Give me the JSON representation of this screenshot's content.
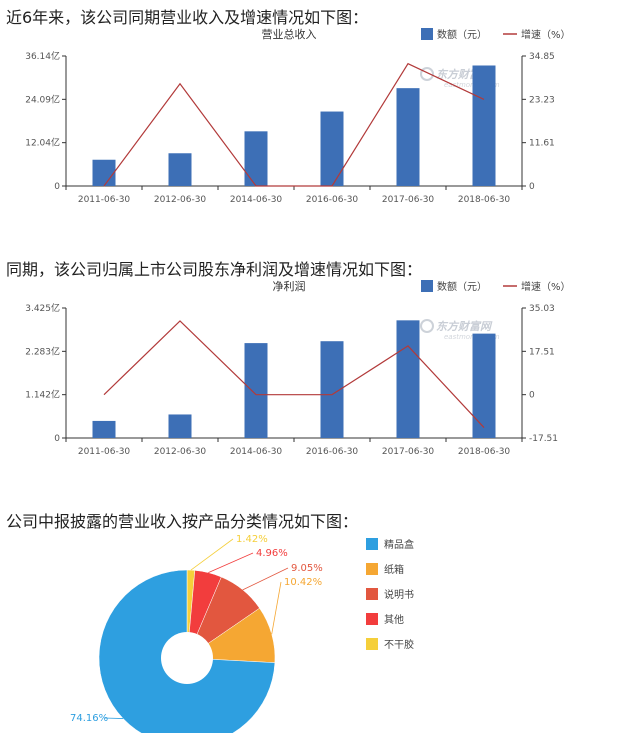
{
  "heading1": "近6年来，该公司同期营业收入及增速情况如下图：",
  "heading2": "同期，该公司归属上市公司股东净利润及增速情况如下图：",
  "heading3": "公司中报披露的营业收入按产品分类情况如下图：",
  "watermark": {
    "text": "东方财富网",
    "sub": "eastmoney.com"
  },
  "colors": {
    "bar": "#3d6fb6",
    "line": "#b23a3a",
    "axis": "#333333",
    "grid": "#e6e6e6"
  },
  "chart_data": [
    {
      "type": "bar",
      "title": "营业总收入",
      "legend": {
        "bar_label": "数额（元）",
        "line_label": "增速（%）",
        "position": "top-right"
      },
      "categories": [
        "2011-06-30",
        "2012-06-30",
        "2014-06-30",
        "2016-06-30",
        "2017-06-30",
        "2018-06-30"
      ],
      "series": [
        {
          "name": "数额（元）",
          "axis": "left",
          "values": [
            7.3,
            9.1,
            15.2,
            20.7,
            27.2,
            33.5
          ]
        },
        {
          "name": "增速（%）",
          "axis": "right",
          "kind": "line",
          "values": [
            0,
            27.4,
            0,
            0,
            32.8,
            23.2
          ]
        }
      ],
      "y_left": {
        "ticks": [
          "0",
          "12.04亿",
          "24.09亿",
          "36.14亿"
        ],
        "ylim": [
          0,
          36.14
        ],
        "unit": "亿"
      },
      "y_right": {
        "ticks": [
          "0",
          "11.61",
          "23.23",
          "34.85"
        ],
        "ylim": [
          0,
          34.85
        ]
      }
    },
    {
      "type": "bar",
      "title": "净利润",
      "legend": {
        "bar_label": "数额（元）",
        "line_label": "增速（%）",
        "position": "top-right"
      },
      "categories": [
        "2011-06-30",
        "2012-06-30",
        "2014-06-30",
        "2016-06-30",
        "2017-06-30",
        "2018-06-30"
      ],
      "series": [
        {
          "name": "数额（元）",
          "axis": "left",
          "values": [
            0.45,
            0.62,
            2.5,
            2.55,
            3.1,
            2.75
          ]
        },
        {
          "name": "增速（%）",
          "axis": "right",
          "kind": "line",
          "values": [
            0,
            29.8,
            0,
            0,
            19.7,
            -13.3
          ]
        }
      ],
      "y_left": {
        "ticks": [
          "0",
          "1.142亿",
          "2.283亿",
          "3.425亿"
        ],
        "ylim": [
          0,
          3.425
        ],
        "unit": "亿"
      },
      "y_right": {
        "ticks": [
          "-17.51",
          "0",
          "17.51",
          "35.03"
        ],
        "ylim": [
          -17.51,
          35.03
        ]
      }
    },
    {
      "type": "pie",
      "donut": true,
      "slices": [
        {
          "label": "精品盒",
          "value": 74.16,
          "display": "74.16%",
          "color": "#2e9fe0"
        },
        {
          "label": "纸箱",
          "value": 10.42,
          "display": "10.42%",
          "color": "#f5a733"
        },
        {
          "label": "说明书",
          "value": 9.05,
          "display": "9.05%",
          "color": "#e2573f"
        },
        {
          "label": "其他",
          "value": 4.96,
          "display": "4.96%",
          "color": "#f23d3d"
        },
        {
          "label": "不干胶",
          "value": 1.42,
          "display": "1.42%",
          "color": "#f5cf3a"
        }
      ],
      "legend_position": "right"
    }
  ]
}
